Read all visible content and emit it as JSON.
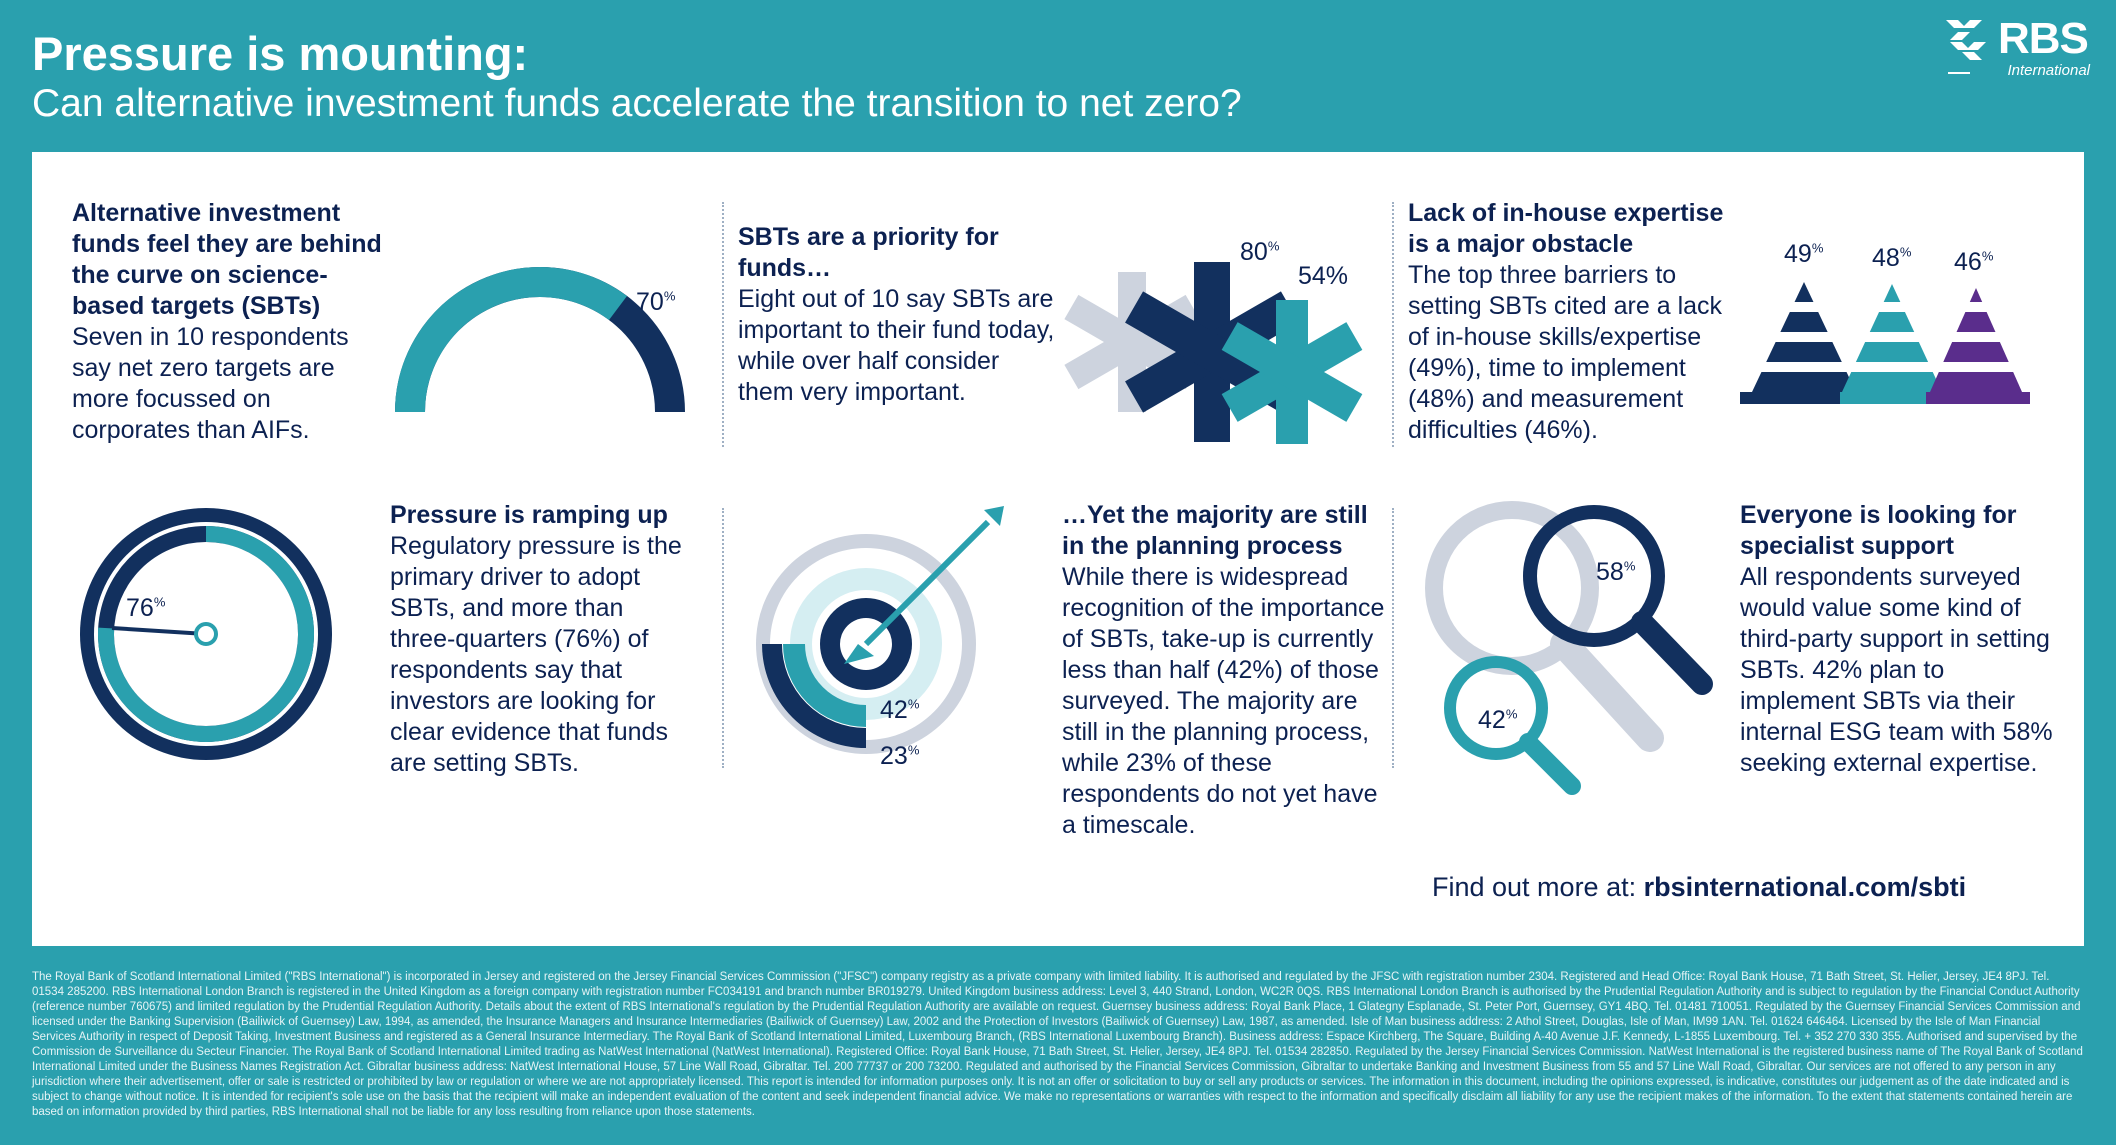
{
  "header": {
    "title": "Pressure is mounting:",
    "subtitle": "Can alternative investment funds accelerate the transition to net zero?"
  },
  "logo": {
    "text": "RBS",
    "sub": "International"
  },
  "sections": [
    {
      "heading": "Alternative investment funds feel they are behind the curve on science-based targets (SBTs)",
      "body": "Seven in 10 respondents say net zero targets are more focussed on corporates than AIFs.",
      "stat": "70"
    },
    {
      "heading": "SBTs are a priority for funds…",
      "body": "Eight out of 10 say SBTs are important to their fund today, while over half consider them very important.",
      "stat_a": "80",
      "stat_b": "54%"
    },
    {
      "heading": "Lack of in-house expertise is a major obstacle",
      "body": "The top three barriers to setting SBTs cited are a lack of in-house skills/expertise (49%), time to implement (48%) and measurement difficulties (46%).",
      "stats": [
        "49",
        "48",
        "46"
      ]
    },
    {
      "heading": "Pressure is ramping up",
      "body": "Regulatory pressure is the primary driver to adopt SBTs, and more than three-quarters (76%) of respondents say that investors are looking for clear evidence that funds are setting SBTs.",
      "stat": "76"
    },
    {
      "heading": "…Yet the majority are still in the planning process",
      "body": "While there is widespread recognition of the importance of SBTs, take-up is currently less than half (42%) of those surveyed. The majority are still in the planning process, while 23% of these respondents do not yet have a timescale.",
      "stat_a": "42",
      "stat_b": "23"
    },
    {
      "heading": "Everyone is looking for specialist support",
      "body": "All respondents surveyed would value some kind of third-party support in setting SBTs. 42% plan to implement SBTs via their internal ESG team with 58% seeking external expertise.",
      "stat_a": "58",
      "stat_b": "42"
    }
  ],
  "pct_sign": "%",
  "cta": {
    "label": "Find out more at: ",
    "link": "rbsinternational.com/sbti"
  },
  "footer": "The Royal Bank of Scotland International Limited (\"RBS International\") is incorporated in Jersey and registered on the Jersey Financial Services Commission (\"JFSC\") company registry as a private company with limited liability. It is authorised and regulated by the JFSC with registration number 2304. Registered and Head Office: Royal Bank House, 71 Bath Street, St. Helier, Jersey, JE4 8PJ. Tel. 01534 285200. RBS International London Branch is registered in the United Kingdom as a foreign company with registration number FC034191 and branch number BR019279. United Kingdom business address: Level 3, 440 Strand, London, WC2R 0QS. RBS International London Branch is authorised by the Prudential Regulation Authority and is subject to regulation by the Financial Conduct Authority (reference number 760675) and limited regulation by the Prudential Regulation Authority. Details about the extent of RBS International's regulation by the Prudential Regulation Authority are available on request. Guernsey business address: Royal Bank Place, 1 Glategny Esplanade, St. Peter Port, Guernsey, GY1 4BQ. Tel. 01481 710051. Regulated by the Guernsey Financial Services Commission and licensed under the Banking Supervision (Bailiwick of Guernsey) Law, 1994, as amended, the Insurance Managers and Insurance Intermediaries (Bailiwick of Guernsey) Law, 2002 and the Protection of Investors (Bailiwick of Guernsey) Law, 1987, as amended. Isle of Man business address: 2 Athol Street, Douglas, Isle of Man, IM99 1AN. Tel. 01624 646464. Licensed by the Isle of Man Financial Services Authority in respect of Deposit Taking, Investment Business and registered as a General Insurance Intermediary. The Royal Bank of Scotland International Limited, Luxembourg Branch, (RBS International Luxembourg Branch). Business address: Espace Kirchberg, The Square, Building A-40 Avenue J.F. Kennedy, L-1855 Luxembourg. Tel. + 352 270 330 355. Authorised and supervised by the Commission de Surveillance du Secteur Financier. The Royal Bank of Scotland International Limited trading as NatWest International (NatWest International). Registered Office: Royal Bank House, 71 Bath Street, St. Helier, Jersey, JE4 8PJ. Tel. 01534 282850. Regulated by the Jersey Financial Services Commission. NatWest International is the registered business name of The Royal Bank of Scotland International Limited under the Business Names Registration Act. Gibraltar business address: NatWest International House, 57 Line Wall Road, Gibraltar. Tel. 200 77737 or 200 73200. Regulated and authorised by the Financial Services Commission, Gibraltar to undertake Banking and Investment Business from 55 and 57 Line Wall Road, Gibraltar. Our services are not offered to any person in any jurisdiction where their advertisement, offer or sale is restricted or prohibited by law or regulation or where we are not appropriately licensed. This report is intended for information purposes only. It is not an offer or solicitation to buy or sell any products or services. The information in this document, including the opinions expressed, is indicative, constitutes our judgement as of the date indicated and is subject to change without notice. It is intended for recipient's sole use on the basis that the recipient will make an independent evaluation of the content and seek independent financial advice. We make no representations or warranties with respect to the information and specifically disclaim all liability for any use the recipient makes of the information. To the extent that statements contained herein are based on information provided by third parties, RBS International shall not be liable for any loss resulting from reliance upon those statements.",
  "colors": {
    "navy": "#12305e",
    "teal": "#2aa0ae",
    "purple": "#5a2d8c",
    "grey": "#cdd3de",
    "light_teal": "#d5eef2"
  }
}
